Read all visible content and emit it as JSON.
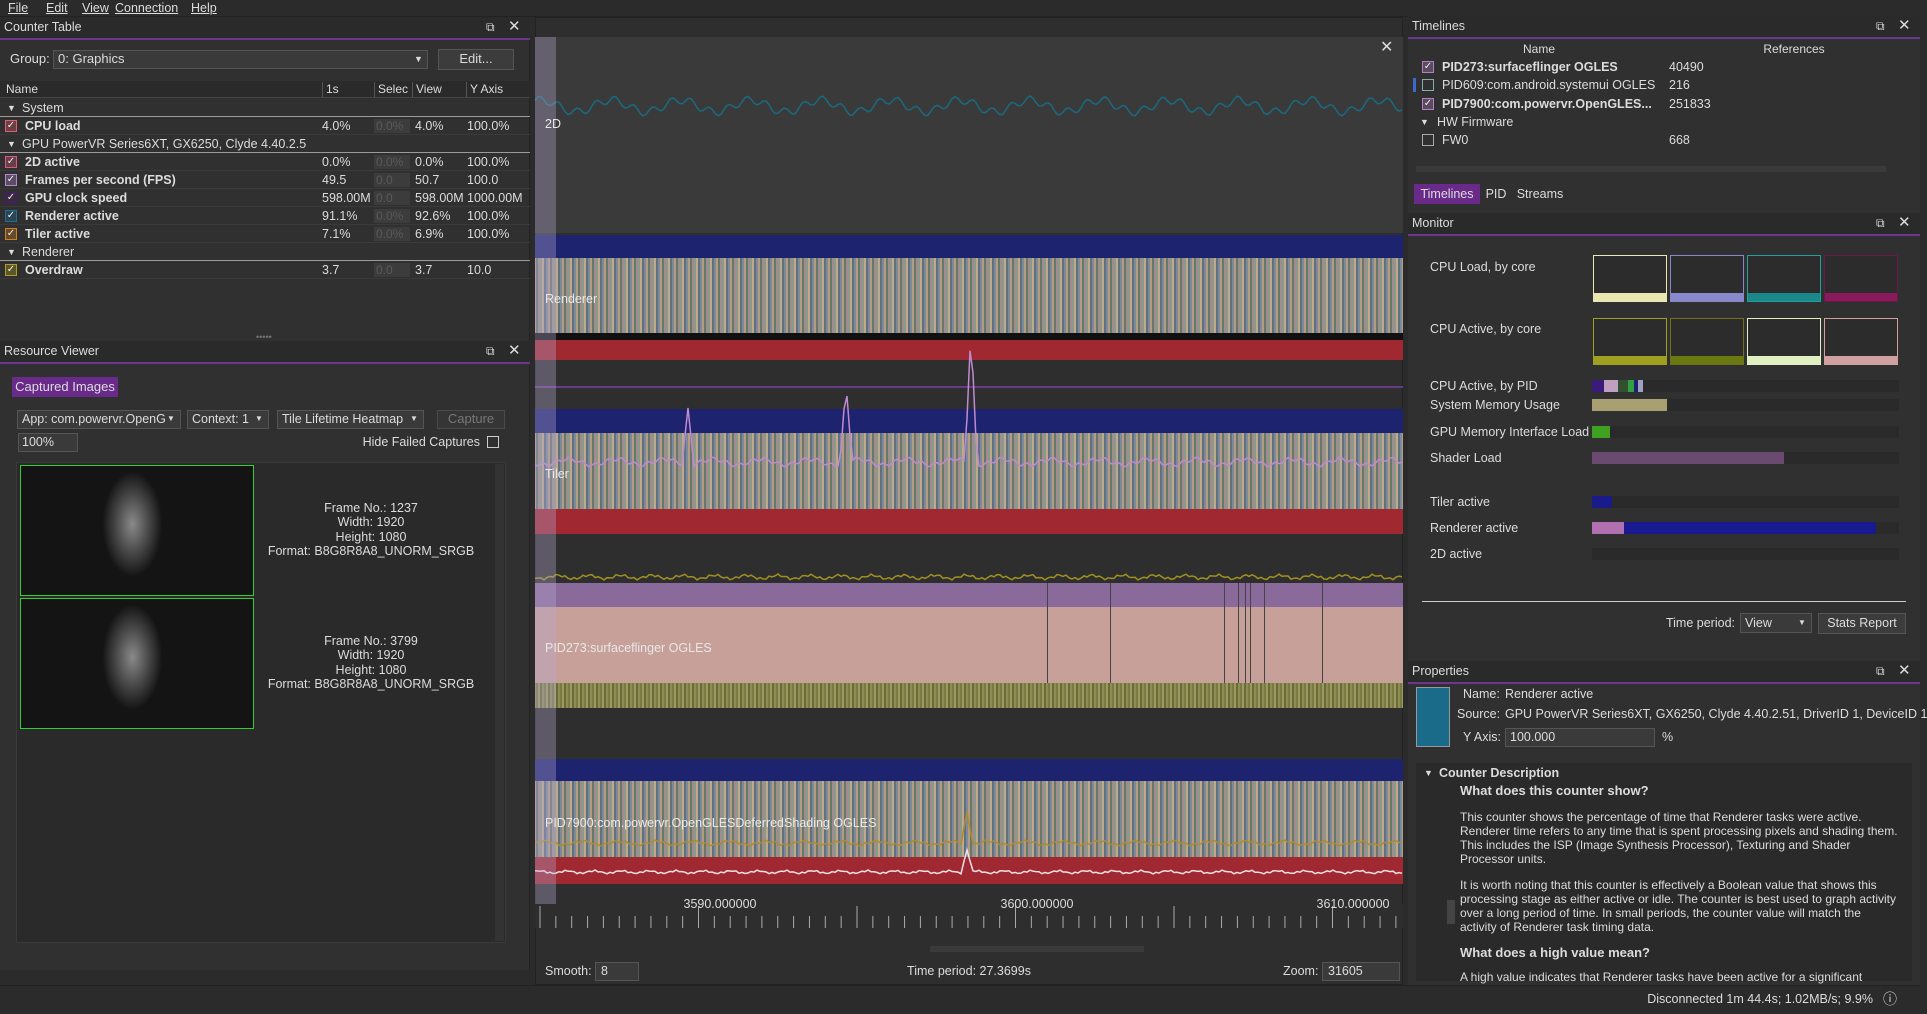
{
  "menu": [
    "File",
    "Edit",
    "View",
    "Connection",
    "Help"
  ],
  "counter_table": {
    "title": "Counter Table",
    "group_label": "Group:",
    "group": "0: Graphics",
    "edit": "Edit...",
    "columns": [
      "Name",
      "1s",
      "Selec",
      "View",
      "Y Axis"
    ],
    "groups": [
      {
        "name": "System",
        "rows": [
          {
            "name": "CPU load",
            "color": "#e06070",
            "cells": [
              "4.0%",
              "0.0%",
              "4.0%",
              "100.0%"
            ]
          }
        ]
      },
      {
        "name": "GPU PowerVR Series6XT, GX6250, Clyde 4.40.2.5",
        "rows": [
          {
            "name": "2D active",
            "color": "#d85a80",
            "cells": [
              "0.0%",
              "0.0%",
              "0.0%",
              "100.0%"
            ]
          },
          {
            "name": "Frames per second (FPS)",
            "color": "#b088d0",
            "cells": [
              "49.5",
              "0.0",
              "50.7",
              "100.0"
            ]
          },
          {
            "name": "GPU clock speed",
            "color": "#4a1a6a",
            "cells": [
              "598.00M",
              "0.0",
              "598.00M",
              "1000.00M"
            ]
          },
          {
            "name": "Renderer active",
            "color": "#1f6e9a",
            "cells": [
              "91.1%",
              "0.0%",
              "92.6%",
              "100.0%"
            ]
          },
          {
            "name": "Tiler active",
            "color": "#d08020",
            "cells": [
              "7.1%",
              "0.0%",
              "6.9%",
              "100.0%"
            ]
          }
        ]
      },
      {
        "name": "Renderer",
        "rows": [
          {
            "name": "Overdraw",
            "color": "#b0a020",
            "cells": [
              "3.7",
              "0.0",
              "3.7",
              "10.0"
            ]
          }
        ]
      }
    ]
  },
  "resource_viewer": {
    "title": "Resource Viewer",
    "tab": "Captured Images",
    "app": "App: com.powervr.OpenG",
    "context": "Context: 1",
    "mode": "Tile Lifetime Heatmap",
    "capture": "Capture",
    "zoom": "100%",
    "hide_failed": "Hide Failed Captures",
    "captures": [
      {
        "frame": "Frame No.: 1237",
        "width": "Width: 1920",
        "height": "Height: 1080",
        "format": "Format: B8G8R8A8_UNORM_SRGB"
      },
      {
        "frame": "Frame No.: 3799",
        "width": "Width: 1920",
        "height": "Height: 1080",
        "format": "Format: B8G8R8A8_UNORM_SRGB"
      }
    ]
  },
  "timeline": {
    "tracks": [
      "2D",
      "Renderer",
      "Tiler",
      "PID273:surfaceflinger OGLES",
      "PID7900:com.powervr.OpenGLESDeferredShading OGLES"
    ],
    "axis_labels": [
      "3590.000000",
      "3600.000000",
      "3610.000000"
    ],
    "smooth_label": "Smooth:",
    "smooth": "8",
    "time_period": "Time period: 27.3699s",
    "zoom_label": "Zoom:",
    "zoom": "31605"
  },
  "timelines": {
    "title": "Timelines",
    "columns": [
      "Name",
      "References"
    ],
    "rows": [
      {
        "name": "PID273:surfaceflinger OGLES",
        "refs": "40490",
        "bold": true,
        "checked": true
      },
      {
        "name": "PID609:com.android.systemui OGLES",
        "refs": "216",
        "bold": false,
        "checked": false
      },
      {
        "name": "PID7900:com.powervr.OpenGLES...",
        "refs": "251833",
        "bold": true,
        "checked": true
      }
    ],
    "group": "HW Firmware",
    "firmware": {
      "name": "FW0",
      "refs": "668"
    },
    "tabs": [
      "Timelines",
      "PID",
      "Streams"
    ]
  },
  "monitor": {
    "title": "Monitor",
    "labels": [
      "CPU Load, by core",
      "CPU Active, by core",
      "CPU Active, by PID",
      "System Memory Usage",
      "GPU Memory Interface Load",
      "Shader Load",
      "Tiler active",
      "Renderer active",
      "2D active"
    ],
    "time_period_label": "Time period:",
    "time_period": "View",
    "stats": "Stats Report"
  },
  "properties": {
    "title": "Properties",
    "name_label": "Name:",
    "name": "Renderer active",
    "source_label": "Source:",
    "source": "GPU PowerVR Series6XT, GX6250, Clyde 4.40.2.51, DriverID 1, DeviceID 1",
    "yaxis_label": "Y Axis:",
    "yaxis": "100.000",
    "unit": "%",
    "description_title": "Counter Description",
    "heading1": "What does this counter show?",
    "para1": "This counter shows the percentage of time that Renderer tasks were active. Renderer time refers to any time that is spent processing pixels and shading them. This includes the ISP (Image Synthesis Processor), Texturing and Shader Processor units.",
    "para2": "It is worth noting that this counter is effectively a Boolean value that shows this processing stage as either active or idle. The counter is best used to graph activity over a long period of time. In small periods, the counter value will match the activity of Renderer task timing data.",
    "heading2": "What does a high value mean?",
    "para3": "A high value indicates that Renderer tasks have been active for a significant"
  },
  "status": "Disconnected 1m 44.4s; 1.02MB/s; 9.9%"
}
